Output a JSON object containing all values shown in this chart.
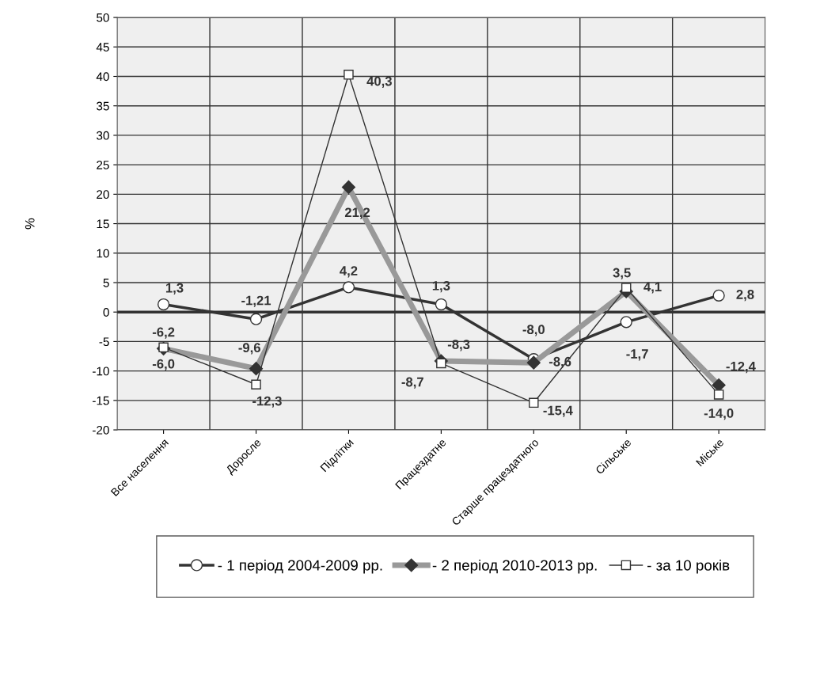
{
  "chart_data": {
    "type": "line",
    "ylabel": "%",
    "categories": [
      "Все населення",
      "Доросле",
      "Підлітки",
      "Працездатне",
      "Старше працездатного",
      "Сільське",
      "Міське"
    ],
    "series": [
      {
        "name": "- 1 період 2004-2009 рр.",
        "color": "#333333",
        "marker": "circle",
        "values": [
          1.3,
          -1.21,
          4.2,
          1.3,
          -8.0,
          -1.7,
          2.8
        ],
        "value_labels": [
          "1,3",
          "-1,21",
          "4,2",
          "1,3",
          "-8,0",
          "-1,7",
          "2,8"
        ]
      },
      {
        "name": "- 2 період 2010-2013 рр.",
        "color": "#999999",
        "marker": "diamond",
        "values": [
          -6.2,
          -9.6,
          21.2,
          -8.3,
          -8.6,
          3.5,
          -12.4
        ],
        "value_labels": [
          "-6,2",
          "-9,6",
          "21,2",
          "-8,3",
          "-8,6",
          "3,5",
          "-12,4"
        ]
      },
      {
        "name": "- за 10 років",
        "color": "#333333",
        "marker": "square",
        "values": [
          -6.0,
          -12.3,
          40.3,
          -8.7,
          -15.4,
          4.1,
          -14.0
        ],
        "value_labels": [
          "-6,0",
          "-12,3",
          "40,3",
          "-8,7",
          "-15,4",
          "4,1",
          "-14,0"
        ]
      }
    ],
    "ylim": [
      -20,
      50
    ],
    "yticks": [
      -20,
      -15,
      -10,
      -5,
      0,
      5,
      10,
      15,
      20,
      25,
      30,
      35,
      40,
      45,
      50
    ],
    "ref_lines": [
      {
        "axis": "y",
        "value": 0,
        "color": "#333333"
      }
    ],
    "grid": true,
    "legend": "bottom"
  }
}
